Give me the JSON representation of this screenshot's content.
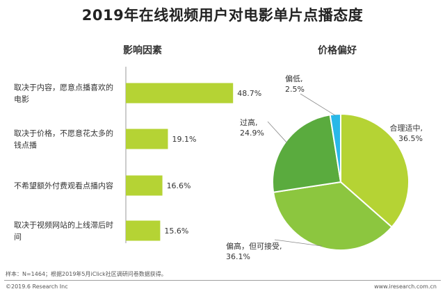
{
  "title": "2019年在线视频用户对电影单片点播态度",
  "colors": {
    "bar": "#b5d334",
    "pie": [
      "#b5d334",
      "#8cc63f",
      "#5aab3e",
      "#29b8e8"
    ],
    "axis": "#999999",
    "leader": "#888888"
  },
  "chart_data": [
    {
      "type": "bar",
      "orientation": "horizontal",
      "title": "影响因素",
      "categories": [
        [
          "取决于内容，愿意点播喜欢的",
          "电影"
        ],
        [
          "取决于价格，不愿意花太多的",
          "钱点播"
        ],
        [
          "不希望额外付费观看点播内容"
        ],
        [
          "取决于视频网站的上线滞后时",
          "间"
        ]
      ],
      "values": [
        48.7,
        19.1,
        16.6,
        15.6
      ],
      "value_labels": [
        "48.7%",
        "19.1%",
        "16.6%",
        "15.6%"
      ],
      "xlim": [
        0,
        60
      ]
    },
    {
      "type": "pie",
      "title": "价格偏好",
      "slices": [
        {
          "name": "合理适中",
          "value": 36.5,
          "label_lines": [
            "合理适中,",
            "36.5%"
          ]
        },
        {
          "name": "偏高，但可接受",
          "value": 36.1,
          "label_lines": [
            "偏高，但可接受,",
            "36.1%"
          ]
        },
        {
          "name": "过高",
          "value": 24.9,
          "label_lines": [
            "过高,",
            "24.9%"
          ]
        },
        {
          "name": "偏低",
          "value": 2.5,
          "label_lines": [
            "偏低,",
            "2.5%"
          ]
        }
      ]
    }
  ],
  "source_note": "样本：N=1464；根据2019年5月iClick社区调研问卷数据获得。",
  "copyright": "©2019.6 Research Inc",
  "website": "www.iresearch.com.cn"
}
